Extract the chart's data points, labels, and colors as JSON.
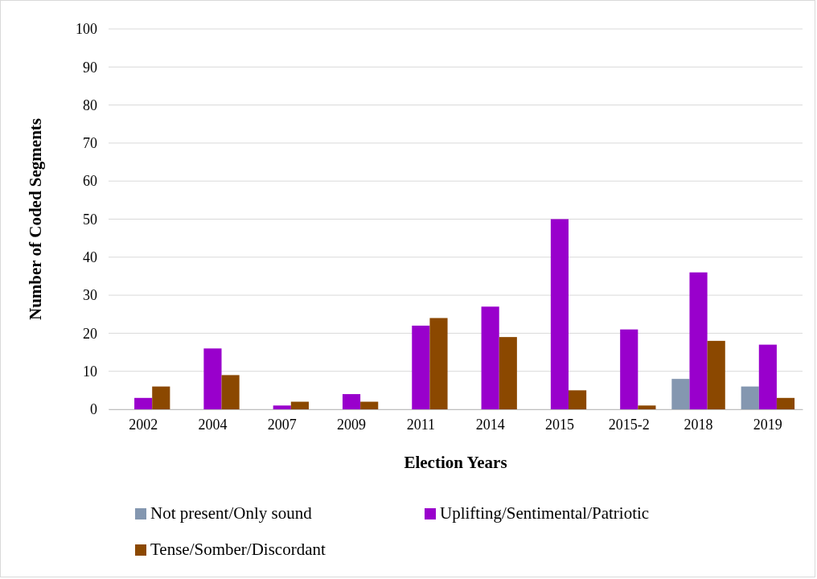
{
  "chart_data": {
    "type": "bar",
    "xlabel": "Election Years",
    "ylabel": "Number of Coded Segments",
    "categories": [
      "2002",
      "2004",
      "2007",
      "2009",
      "2011",
      "2014",
      "2015",
      "2015-2",
      "2018",
      "2019"
    ],
    "series": [
      {
        "name": "Not present/Only sound",
        "color": "#8497b0",
        "values": [
          0,
          0,
          0,
          0,
          0,
          0,
          0,
          0,
          8,
          6
        ]
      },
      {
        "name": "Uplifting/Sentimental/Patriotic",
        "color": "#9900cc",
        "values": [
          3,
          16,
          1,
          4,
          22,
          27,
          50,
          21,
          36,
          17
        ]
      },
      {
        "name": "Tense/Somber/Discordant",
        "color": "#8b4800",
        "values": [
          6,
          9,
          2,
          2,
          24,
          19,
          5,
          1,
          18,
          3
        ]
      }
    ],
    "ylim": [
      0,
      100
    ],
    "yticks": [
      0,
      10,
      20,
      30,
      40,
      50,
      60,
      70,
      80,
      90,
      100
    ],
    "grid": "y",
    "legend": "bottom"
  }
}
